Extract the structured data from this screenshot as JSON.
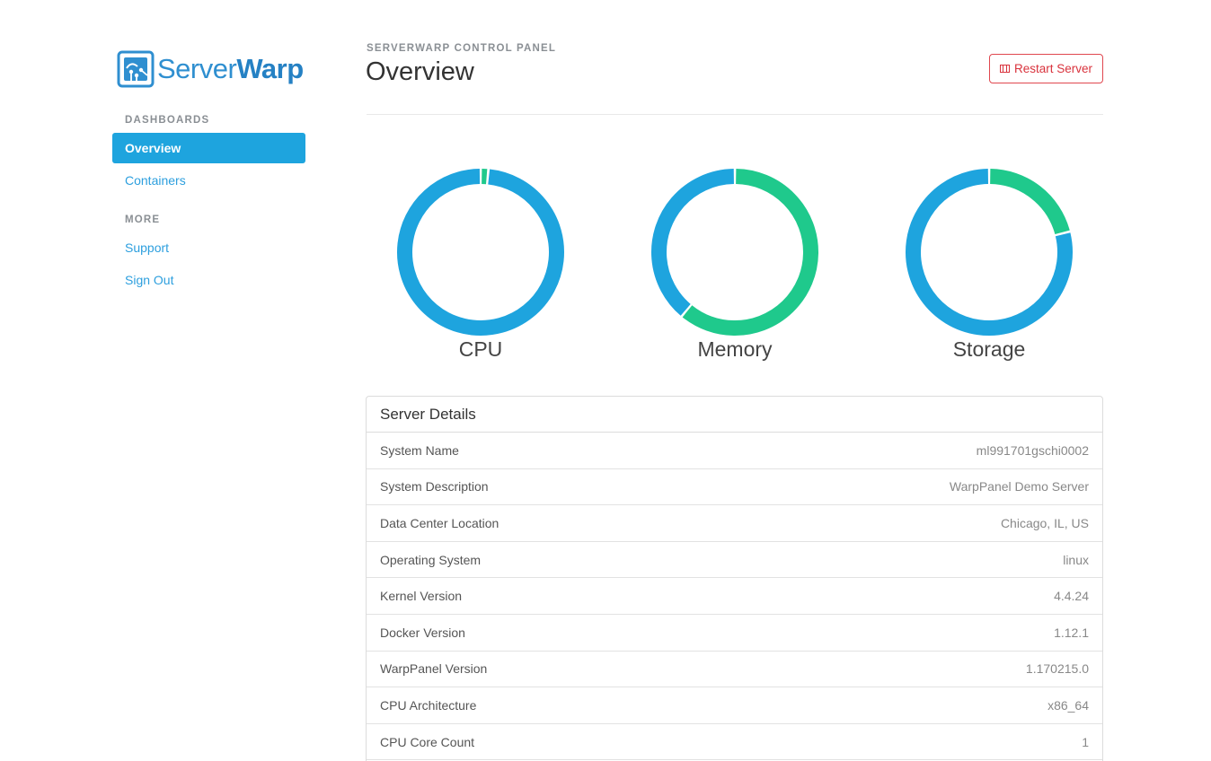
{
  "brand": {
    "name_light": "Server",
    "name_bold": "Warp",
    "color": "#2f8fd0"
  },
  "sidebar": {
    "sections": [
      {
        "heading": "DASHBOARDS",
        "items": [
          {
            "label": "Overview",
            "active": true
          },
          {
            "label": "Containers",
            "active": false
          }
        ]
      },
      {
        "heading": "MORE",
        "items": [
          {
            "label": "Support",
            "active": false
          },
          {
            "label": "Sign Out",
            "active": false
          }
        ]
      }
    ]
  },
  "header": {
    "eyebrow": "SERVERWARP CONTROL PANEL",
    "title": "Overview",
    "restart_label": "Restart Server",
    "restart_icon": "server-icon",
    "danger_color": "#d9333d"
  },
  "colors": {
    "used": "#1ea4de",
    "free": "#1fc98c"
  },
  "gauges": [
    {
      "label": "CPU",
      "used_fraction": 0.985
    },
    {
      "label": "Memory",
      "used_fraction": 0.39
    },
    {
      "label": "Storage",
      "used_fraction": 0.79
    }
  ],
  "details": {
    "title": "Server Details",
    "rows": [
      {
        "key": "System Name",
        "value": "ml991701gschi0002"
      },
      {
        "key": "System Description",
        "value": "WarpPanel Demo Server"
      },
      {
        "key": "Data Center Location",
        "value": "Chicago, IL, US"
      },
      {
        "key": "Operating System",
        "value": "linux"
      },
      {
        "key": "Kernel Version",
        "value": "4.4.24"
      },
      {
        "key": "Docker Version",
        "value": "1.12.1"
      },
      {
        "key": "WarpPanel Version",
        "value": "1.170215.0"
      },
      {
        "key": "CPU Architecture",
        "value": "x86_64"
      },
      {
        "key": "CPU Core Count",
        "value": "1"
      }
    ]
  }
}
